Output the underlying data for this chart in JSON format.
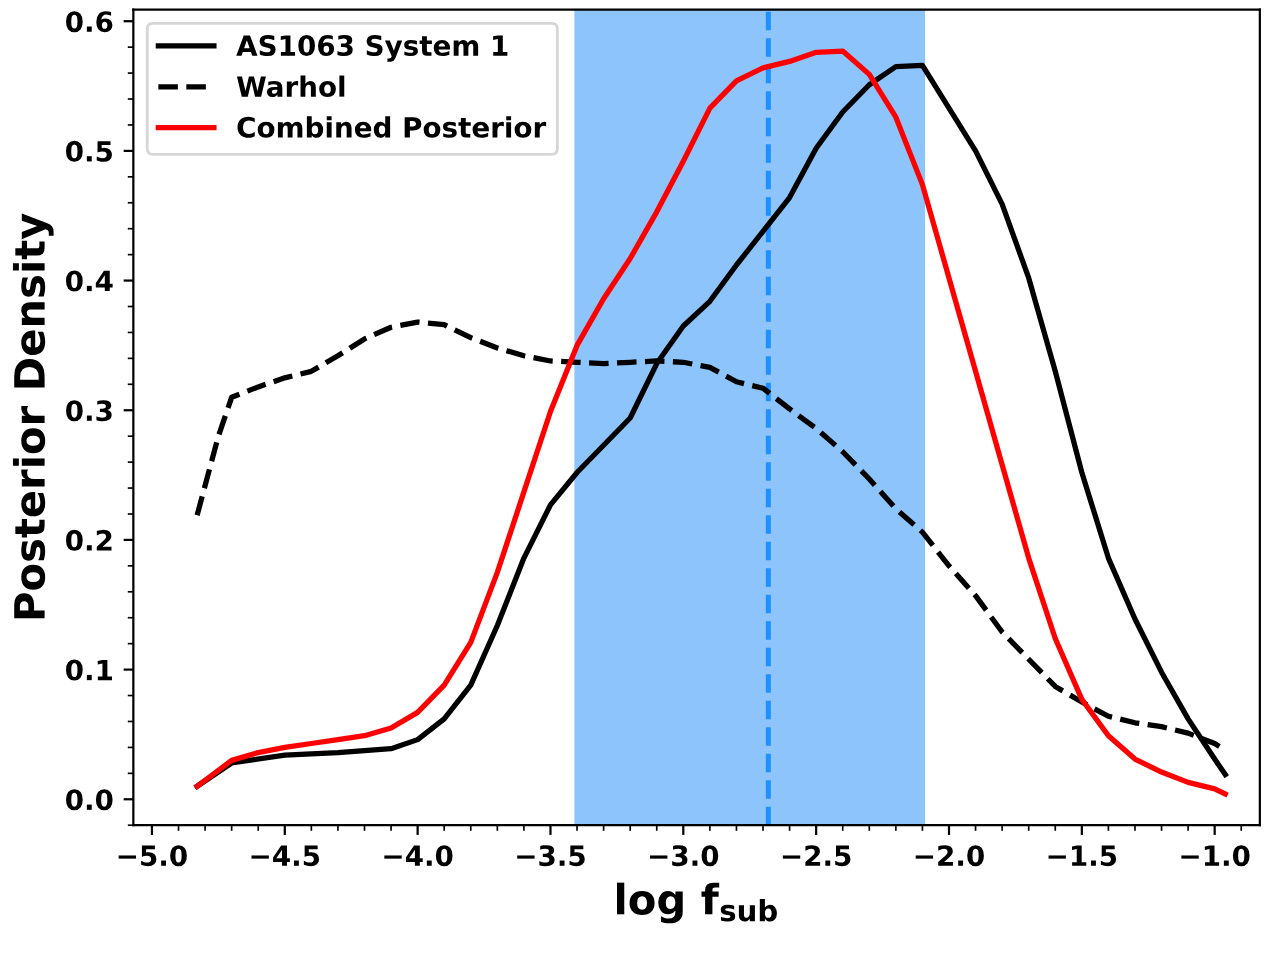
{
  "chart_data": {
    "type": "line",
    "xlabel": "log f$_{sub}$",
    "ylabel": "Posterior Density",
    "xlim": [
      -5.07,
      -0.83
    ],
    "ylim": [
      -0.02,
      0.609
    ],
    "xticks": [
      {
        "value": -5.0,
        "label": "−5.0"
      },
      {
        "value": -4.5,
        "label": "−4.5"
      },
      {
        "value": -4.0,
        "label": "−4.0"
      },
      {
        "value": -3.5,
        "label": "−3.5"
      },
      {
        "value": -3.0,
        "label": "−3.0"
      },
      {
        "value": -2.5,
        "label": "−2.5"
      },
      {
        "value": -2.0,
        "label": "−2.0"
      },
      {
        "value": -1.5,
        "label": "−1.5"
      },
      {
        "value": -1.0,
        "label": "−1.0"
      }
    ],
    "yticks": [
      {
        "value": 0.0,
        "label": "0.0"
      },
      {
        "value": 0.1,
        "label": "0.1"
      },
      {
        "value": 0.2,
        "label": "0.2"
      },
      {
        "value": 0.3,
        "label": "0.3"
      },
      {
        "value": 0.4,
        "label": "0.4"
      },
      {
        "value": 0.5,
        "label": "0.5"
      },
      {
        "value": 0.6,
        "label": "0.6"
      }
    ],
    "legend": "top left",
    "grid": false,
    "bands": [
      {
        "axis": "x",
        "from": -3.41,
        "to": -2.09,
        "color": "#8ec4fc"
      }
    ],
    "ref_lines": [
      {
        "axis": "x",
        "value": -2.68,
        "color": "#1e90ff",
        "line_style": "dashed"
      }
    ],
    "series": [
      {
        "name": "AS1063 System 1",
        "color": "#000000",
        "line_style": "solid",
        "x": [
          -4.83,
          -4.7,
          -4.5,
          -4.3,
          -4.1,
          -4.0,
          -3.9,
          -3.8,
          -3.7,
          -3.6,
          -3.5,
          -3.4,
          -3.3,
          -3.2,
          -3.1,
          -3.0,
          -2.9,
          -2.8,
          -2.7,
          -2.6,
          -2.5,
          -2.4,
          -2.3,
          -2.2,
          -2.1,
          -2.0,
          -1.9,
          -1.8,
          -1.7,
          -1.6,
          -1.5,
          -1.4,
          -1.3,
          -1.2,
          -1.1,
          -1.0,
          -0.96
        ],
        "values": [
          0.01,
          0.028,
          0.034,
          0.036,
          0.039,
          0.046,
          0.062,
          0.088,
          0.134,
          0.186,
          0.227,
          0.252,
          0.273,
          0.294,
          0.336,
          0.365,
          0.384,
          0.412,
          0.438,
          0.464,
          0.502,
          0.53,
          0.551,
          0.565,
          0.566,
          0.533,
          0.5,
          0.459,
          0.402,
          0.33,
          0.252,
          0.186,
          0.139,
          0.098,
          0.062,
          0.031,
          0.019
        ]
      },
      {
        "name": "Warhol",
        "color": "#000000",
        "line_style": "dashed",
        "x": [
          -4.83,
          -4.75,
          -4.7,
          -4.6,
          -4.5,
          -4.4,
          -4.3,
          -4.2,
          -4.1,
          -4.0,
          -3.9,
          -3.8,
          -3.7,
          -3.6,
          -3.5,
          -3.4,
          -3.3,
          -3.2,
          -3.1,
          -3.0,
          -2.9,
          -2.8,
          -2.7,
          -2.6,
          -2.5,
          -2.4,
          -2.3,
          -2.2,
          -2.1,
          -2.0,
          -1.9,
          -1.8,
          -1.7,
          -1.6,
          -1.5,
          -1.4,
          -1.3,
          -1.2,
          -1.1,
          -1.0,
          -0.96
        ],
        "values": [
          0.219,
          0.28,
          0.31,
          0.318,
          0.325,
          0.33,
          0.342,
          0.355,
          0.364,
          0.368,
          0.366,
          0.356,
          0.348,
          0.342,
          0.338,
          0.337,
          0.336,
          0.337,
          0.338,
          0.337,
          0.333,
          0.322,
          0.317,
          0.301,
          0.286,
          0.268,
          0.247,
          0.224,
          0.206,
          0.18,
          0.157,
          0.129,
          0.108,
          0.087,
          0.075,
          0.064,
          0.059,
          0.056,
          0.051,
          0.043,
          0.038
        ]
      },
      {
        "name": "Combined Posterior",
        "color": "#ff0000",
        "line_style": "solid",
        "x": [
          -4.83,
          -4.7,
          -4.6,
          -4.5,
          -4.4,
          -4.3,
          -4.2,
          -4.1,
          -4.0,
          -3.9,
          -3.8,
          -3.7,
          -3.6,
          -3.5,
          -3.4,
          -3.3,
          -3.2,
          -3.1,
          -3.0,
          -2.9,
          -2.8,
          -2.7,
          -2.6,
          -2.5,
          -2.4,
          -2.3,
          -2.2,
          -2.1,
          -2.0,
          -1.9,
          -1.8,
          -1.7,
          -1.6,
          -1.5,
          -1.4,
          -1.3,
          -1.2,
          -1.1,
          -1.0,
          -0.96
        ],
        "values": [
          0.01,
          0.03,
          0.036,
          0.04,
          0.043,
          0.046,
          0.049,
          0.055,
          0.067,
          0.088,
          0.121,
          0.175,
          0.237,
          0.299,
          0.35,
          0.386,
          0.417,
          0.453,
          0.492,
          0.533,
          0.554,
          0.564,
          0.569,
          0.576,
          0.577,
          0.559,
          0.526,
          0.474,
          0.402,
          0.33,
          0.258,
          0.186,
          0.124,
          0.077,
          0.049,
          0.031,
          0.021,
          0.013,
          0.008,
          0.004
        ]
      }
    ]
  }
}
